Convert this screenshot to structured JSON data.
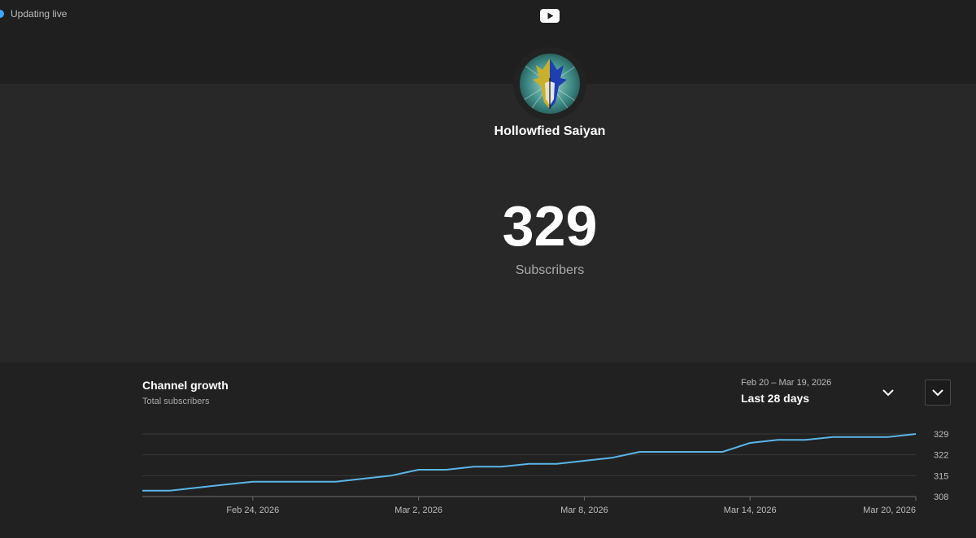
{
  "status": {
    "label": "Updating live"
  },
  "icons": {
    "logo": "youtube-logo-icon",
    "expand": "chevron-down-icon",
    "range": "chevron-down-icon",
    "live": "live-dot-icon"
  },
  "channel": {
    "name": "Hollowfied Saiyan",
    "subscriber_count": "329",
    "subscriber_label": "Subscribers"
  },
  "growth": {
    "title": "Channel growth",
    "subtitle": "Total subscribers",
    "range_dates": "Feb 20 – Mar 19, 2026",
    "range_label": "Last 28 days"
  },
  "colors": {
    "line": "#5ab5e8",
    "background": "#282828",
    "panel": "#212121",
    "accent": "#3ea6ff"
  },
  "chart_data": {
    "type": "line",
    "title": "Channel growth",
    "subtitle": "Total subscribers",
    "x_tick_labels": [
      "Feb 24, 2026",
      "Mar 2, 2026",
      "Mar 8, 2026",
      "Mar 14, 2026",
      "Mar 20, 2026"
    ],
    "x_tick_dates": [
      "2026-02-24",
      "2026-03-02",
      "2026-03-08",
      "2026-03-14",
      "2026-03-20"
    ],
    "y_ticks": [
      308,
      315,
      322,
      329
    ],
    "ylim": [
      308,
      329
    ],
    "grid": true,
    "series": [
      {
        "x": [
          "2026-02-20",
          "2026-02-21",
          "2026-02-22",
          "2026-02-23",
          "2026-02-24",
          "2026-02-25",
          "2026-02-26",
          "2026-02-27",
          "2026-02-28",
          "2026-03-01",
          "2026-03-02",
          "2026-03-03",
          "2026-03-04",
          "2026-03-05",
          "2026-03-06",
          "2026-03-07",
          "2026-03-08",
          "2026-03-09",
          "2026-03-10",
          "2026-03-11",
          "2026-03-12",
          "2026-03-13",
          "2026-03-14",
          "2026-03-15",
          "2026-03-16",
          "2026-03-17",
          "2026-03-18",
          "2026-03-19",
          "2026-03-20"
        ],
        "values": [
          310,
          310,
          311,
          312,
          313,
          313,
          313,
          313,
          314,
          315,
          317,
          317,
          318,
          318,
          319,
          319,
          320,
          321,
          323,
          323,
          323,
          323,
          326,
          327,
          327,
          328,
          328,
          328,
          329
        ]
      }
    ]
  }
}
